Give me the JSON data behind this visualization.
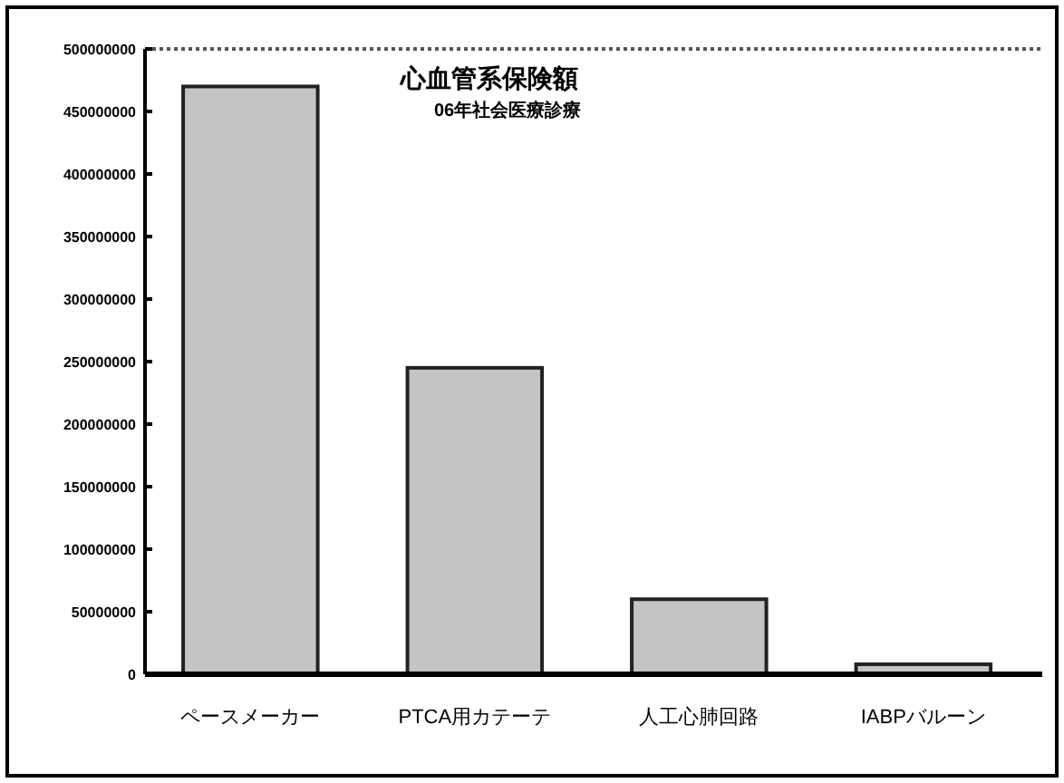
{
  "chart_data": {
    "type": "bar",
    "title": "心血管系保険額",
    "subtitle": "06年社会医療診療",
    "categories": [
      "ペースメーカー",
      "PTCA用カテーテ",
      "人工心肺回路",
      "IABPバルーン"
    ],
    "values": [
      470000000,
      245000000,
      60000000,
      8000000
    ],
    "color": "#c4c4c4",
    "ylim": [
      0,
      500000000
    ],
    "yticks": [
      0,
      50000000,
      100000000,
      150000000,
      200000000,
      250000000,
      300000000,
      350000000,
      400000000,
      450000000,
      500000000
    ],
    "grid": false
  }
}
